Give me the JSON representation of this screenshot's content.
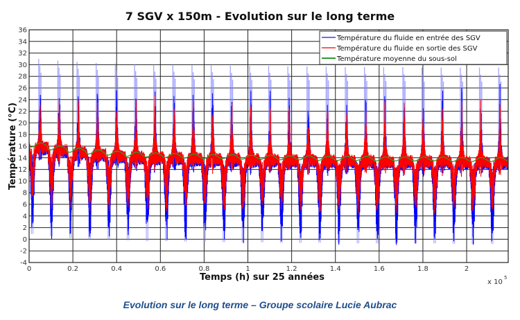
{
  "chart_data": {
    "type": "line",
    "title": "7 SGV x 150m - Evolution sur le long terme",
    "xlabel": "Temps (h) sur 25 années",
    "ylabel": "Température (°C)",
    "x_multiplier": "x 10",
    "x_multiplier_exp": "5",
    "xlim": [
      0,
      2.19
    ],
    "ylim": [
      -4,
      36
    ],
    "x_ticks": [
      "0",
      "0.2",
      "0.4",
      "0.6",
      "0.8",
      "1",
      "1.2",
      "1.4",
      "1.6",
      "1.8",
      "2"
    ],
    "y_ticks": [
      "-4",
      "-2",
      "0",
      "2",
      "4",
      "6",
      "8",
      "10",
      "12",
      "14",
      "16",
      "18",
      "20",
      "22",
      "24",
      "26",
      "28",
      "30",
      "32",
      "34",
      "36"
    ],
    "grid": true,
    "legend_position": "top-right",
    "period_hours": 8760,
    "years": [
      1,
      2,
      3,
      4,
      5,
      6,
      7,
      8,
      9,
      10,
      11,
      12,
      13,
      14,
      15,
      16,
      17,
      18,
      19,
      20,
      21,
      22,
      23,
      24,
      25
    ],
    "series": [
      {
        "name": "Température du fluide en entrée des SGV",
        "color": "#0000ff",
        "yearly_max": [
          31,
          30.7,
          30.5,
          30.3,
          30.2,
          30.1,
          30,
          30,
          29.9,
          29.9,
          29.8,
          29.8,
          29.8,
          29.7,
          29.7,
          29.7,
          29.6,
          29.6,
          29.6,
          29.6,
          29.5,
          29.5,
          29.5,
          29.5,
          29.5
        ],
        "yearly_min": [
          1.2,
          0.8,
          0.5,
          0.3,
          0.2,
          0.1,
          0,
          0,
          -0.1,
          -0.1,
          -0.2,
          -0.2,
          -0.2,
          -0.3,
          -0.3,
          -0.3,
          -0.3,
          -0.4,
          -0.4,
          -0.4,
          -0.4,
          -0.4,
          -0.5,
          -0.5,
          -0.5
        ]
      },
      {
        "name": "Température du fluide en sortie des SGV",
        "color": "#ff0000",
        "yearly_max": [
          24.5,
          24,
          23.8,
          23.7,
          23.6,
          23.5,
          23.5,
          23.4,
          23.4,
          23.4,
          23.3,
          23.3,
          23.3,
          23.3,
          23.2,
          23.2,
          23.2,
          23.2,
          23.2,
          23.1,
          23.1,
          23.1,
          23.1,
          23.1,
          23.1
        ],
        "yearly_min": [
          6.5,
          6,
          5.8,
          5.7,
          5.6,
          5.5,
          5.5,
          5.4,
          5.4,
          5.4,
          5.3,
          5.3,
          5.3,
          5.3,
          5.2,
          5.2,
          5.2,
          5.2,
          5.2,
          5.1,
          5.1,
          5.1,
          5.1,
          5.1,
          5.1
        ]
      },
      {
        "name": "Température moyenne du sous-sol",
        "color": "#2e9a2e",
        "yearly_mean": [
          16.2,
          15.7,
          15.3,
          15.0,
          14.8,
          14.6,
          14.5,
          14.4,
          14.3,
          14.2,
          14.2,
          14.1,
          14.1,
          14.0,
          14.0,
          13.9,
          13.9,
          13.9,
          13.8,
          13.8,
          13.8,
          13.8,
          13.7,
          13.7,
          13.7
        ]
      }
    ]
  },
  "caption": "Evolution sur le long terme  – Groupe scolaire Lucie Aubrac"
}
